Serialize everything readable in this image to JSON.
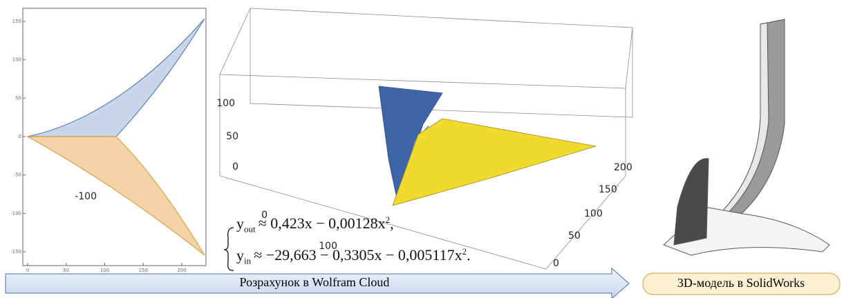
{
  "plot2d": {
    "xticks": [
      0,
      50,
      100,
      150,
      200
    ],
    "yticks": [
      -150,
      -100,
      -50,
      0,
      50,
      100,
      150
    ]
  },
  "plot3d": {
    "zticks": [
      0,
      50,
      100
    ],
    "xticks": [
      -100,
      0,
      100
    ],
    "yticks": [
      0,
      50,
      100,
      150,
      200
    ]
  },
  "equations": [
    {
      "lhs": "y",
      "sub": "out",
      "rhs": "≈ 0,423x − 0,00128x",
      "sup": "2",
      "end": ","
    },
    {
      "lhs": "y",
      "sub": "in",
      "rhs": "≈ −29,663 − 0,3305x − 0,005117x",
      "sup": "2",
      "end": "."
    }
  ],
  "arrow_label": "Розрахунок в Wolfram Cloud",
  "box_label": "3D-модель в SolidWorks"
}
